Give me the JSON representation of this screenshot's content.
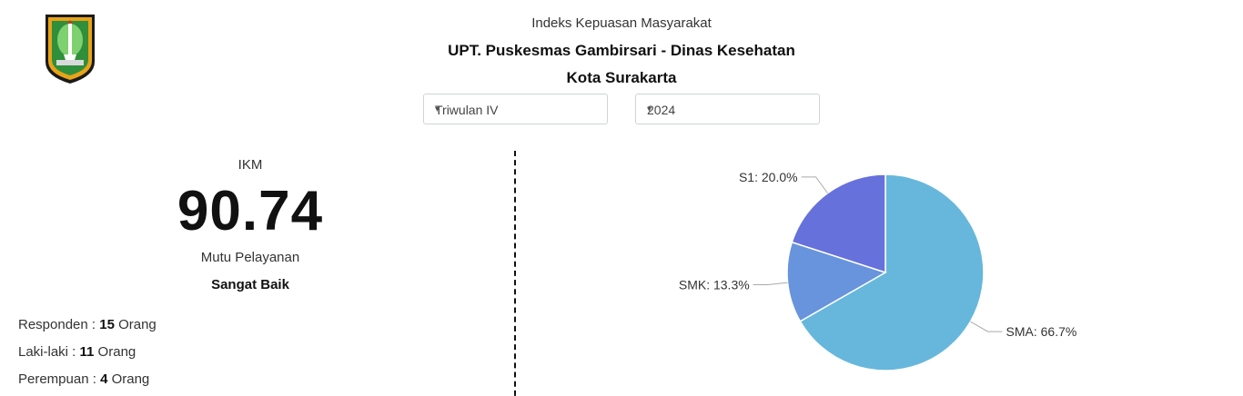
{
  "header": {
    "subtitle": "Indeks Kepuasan Masyarakat",
    "title": "UPT. Puskesmas Gambirsari - Dinas Kesehatan",
    "title2": "Kota Surakarta"
  },
  "filters": {
    "period": "Triwulan IV",
    "year": "2024"
  },
  "summary": {
    "ikm_label": "IKM",
    "ikm_value": "90.74",
    "mutu_label": "Mutu Pelayanan",
    "mutu_value": "Sangat Baik"
  },
  "stats": [
    {
      "label": "Responden : ",
      "value": "15",
      "unit": " Orang"
    },
    {
      "label": "Laki-laki : ",
      "value": "11",
      "unit": " Orang"
    },
    {
      "label": "Perempuan : ",
      "value": "4",
      "unit": " Orang"
    }
  ],
  "chart_data": {
    "type": "pie",
    "categories": [
      "SMA",
      "SMK",
      "S1"
    ],
    "values": [
      66.7,
      13.3,
      20.0
    ],
    "labels": [
      "SMA: 66.7%",
      "SMK: 13.3%",
      "S1: 20.0%"
    ],
    "colors": [
      "#67b7dc",
      "#6794dc",
      "#6771dc"
    ]
  }
}
